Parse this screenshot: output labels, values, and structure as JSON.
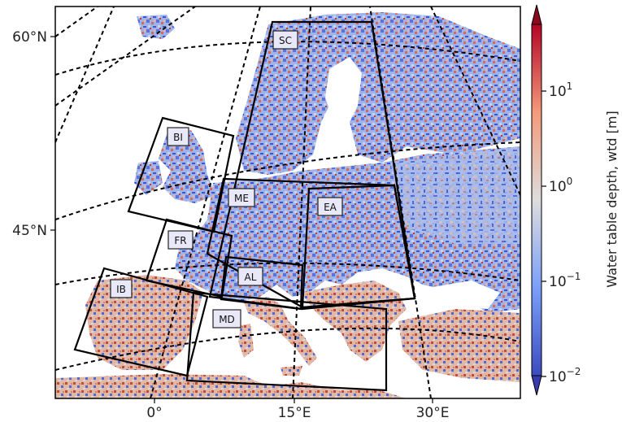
{
  "map": {
    "lat_labels": [
      "60°N",
      "45°N"
    ],
    "lon_labels": [
      "0°",
      "15°E",
      "30°E"
    ],
    "regions": [
      {
        "code": "SC"
      },
      {
        "code": "BI"
      },
      {
        "code": "ME"
      },
      {
        "code": "EA"
      },
      {
        "code": "FR"
      },
      {
        "code": "AL"
      },
      {
        "code": "IB"
      },
      {
        "code": "MD"
      }
    ]
  },
  "colorbar": {
    "title": "Water table depth, wtd [m]",
    "tick_labels": [
      {
        "base": "10",
        "exp": "1"
      },
      {
        "base": "10",
        "exp": "0"
      },
      {
        "base": "10",
        "exp": "−1"
      },
      {
        "base": "10",
        "exp": "−2"
      }
    ],
    "colors": {
      "low": "#3b4cc0",
      "mid": "#dddddd",
      "high": "#b40426",
      "extend_high": "#8a0a1e",
      "extend_low": "#3a3ab0"
    }
  }
}
